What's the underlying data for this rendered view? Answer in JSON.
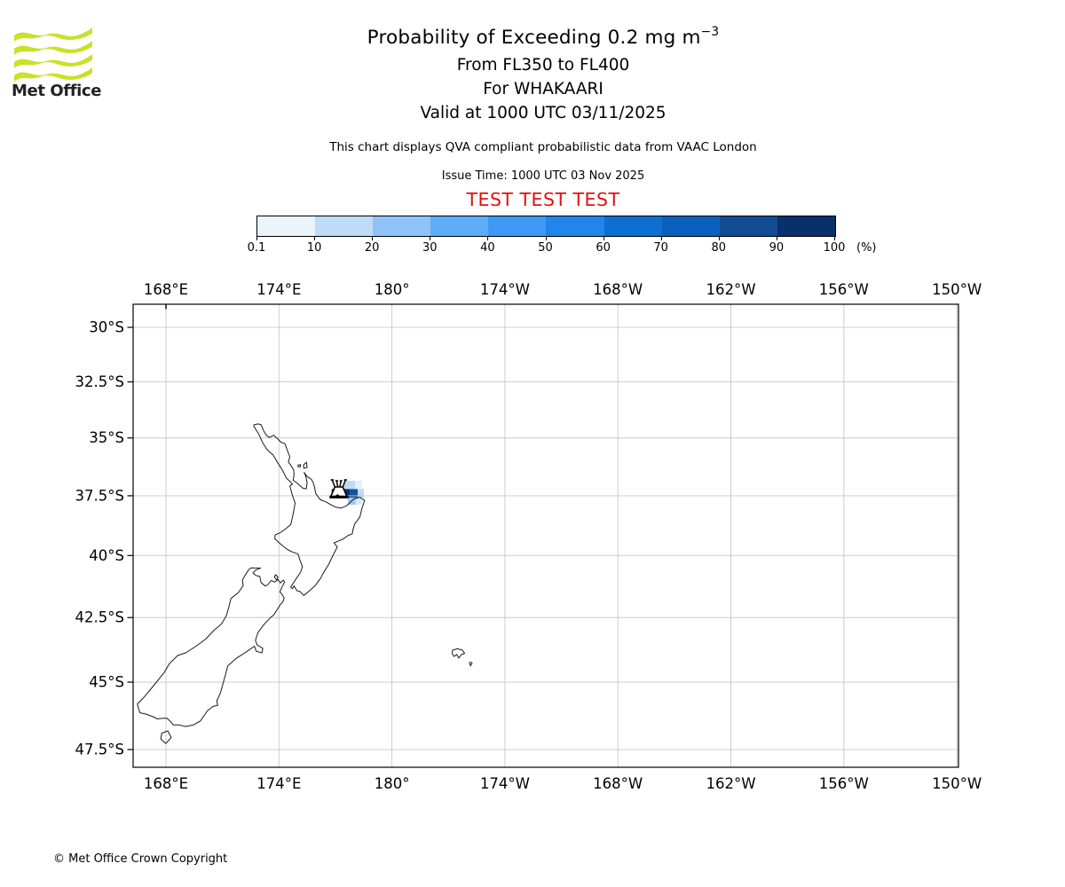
{
  "header": {
    "brand": "Met Office",
    "title": "Probability of Exceeding 0.2 mg m",
    "title_sup": "−3",
    "line2": "From FL350 to FL400",
    "line3": "For WHAKAARI",
    "line4": "Valid at 1000 UTC 03/11/2025",
    "note": "This chart displays QVA compliant probabilistic data from VAAC London",
    "issue": "Issue Time: 1000 UTC 03 Nov 2025",
    "banner": "TEST TEST TEST"
  },
  "colors": {
    "banner_red": "#E01111",
    "logo_green": "#C9E126",
    "grid_gray": "#C8C8C8",
    "coast_black": "#1a1a1a"
  },
  "colorbar": {
    "unit": "(%)",
    "tick_labels": [
      "0.1",
      "10",
      "20",
      "30",
      "40",
      "50",
      "60",
      "70",
      "80",
      "90",
      "100"
    ],
    "segment_colors": [
      "#EBF3FB",
      "#BFDCF6",
      "#8FC3F7",
      "#5EACF8",
      "#3E9AF4",
      "#2185EB",
      "#0D6FD2",
      "#0A60BC",
      "#114C92",
      "#08306B"
    ]
  },
  "chart_data": {
    "type": "heatmap",
    "title": "Probability of Exceeding 0.2 mg m−3",
    "subtitle": "From FL350 to FL400, For WHAKAARI, Valid at 1000 UTC 03/11/2025",
    "legend_title": "(%)",
    "colorbar_bounds": [
      0.1,
      10,
      20,
      30,
      40,
      50,
      60,
      70,
      80,
      90,
      100
    ],
    "x_axis": {
      "ticks": [
        168,
        174,
        180,
        186,
        192,
        198,
        204,
        210
      ],
      "labels": [
        "168°E",
        "174°E",
        "180°",
        "174°W",
        "168°W",
        "162°W",
        "156°W",
        "150°W"
      ]
    },
    "y_axis": {
      "ticks": [
        -30,
        -32.5,
        -35,
        -37.5,
        -40,
        -42.5,
        -45,
        -47.5
      ],
      "labels": [
        "30°S",
        "32.5°S",
        "35°S",
        "37.5°S",
        "40°S",
        "42.5°S",
        "45°S",
        "47.5°S"
      ]
    },
    "volcano": {
      "name": "WHAKAARI",
      "lon": 177.18,
      "lat": -37.52
    },
    "cells": [
      {
        "lon": [
          176.8,
          177.28
        ],
        "lat": [
          -37.21,
          -37.58
        ],
        "prob": "90–100",
        "color": "#08306B"
      },
      {
        "lon": [
          177.28,
          177.76
        ],
        "lat": [
          -37.21,
          -37.58
        ],
        "prob": "90–100",
        "color": "#08306B"
      },
      {
        "lon": [
          177.76,
          178.18
        ],
        "lat": [
          -37.21,
          -37.58
        ],
        "prob": "80–90",
        "color": "#11529B"
      },
      {
        "lon": [
          178.18,
          178.51
        ],
        "lat": [
          -37.21,
          -37.58
        ],
        "prob": "10–20",
        "color": "#BEDCF6"
      },
      {
        "lon": [
          177.47,
          178.04
        ],
        "lat": [
          -36.86,
          -37.21
        ],
        "prob": "10–20",
        "color": "#BEDCF6"
      },
      {
        "lon": [
          178.04,
          178.41
        ],
        "lat": [
          -36.86,
          -37.21
        ],
        "prob": "0.1–10",
        "color": "#E4EFFA"
      },
      {
        "lon": [
          177.66,
          178.08
        ],
        "lat": [
          -37.58,
          -37.88
        ],
        "prob": "20–30",
        "color": "#9CC9F2"
      },
      {
        "lon": [
          178.08,
          178.41
        ],
        "lat": [
          -37.58,
          -37.88
        ],
        "prob": "0.1–10",
        "color": "#D9E9F9"
      }
    ],
    "coastlines": {
      "north_island": [
        [
          172.68,
          -34.42
        ],
        [
          172.88,
          -34.38
        ],
        [
          173.05,
          -34.41
        ],
        [
          173.2,
          -34.7
        ],
        [
          173.35,
          -34.9
        ],
        [
          173.5,
          -34.98
        ],
        [
          173.72,
          -34.88
        ],
        [
          173.95,
          -35.05
        ],
        [
          174.1,
          -35.18
        ],
        [
          174.32,
          -35.25
        ],
        [
          174.45,
          -35.55
        ],
        [
          174.58,
          -35.82
        ],
        [
          174.5,
          -36.05
        ],
        [
          174.62,
          -36.18
        ],
        [
          174.78,
          -36.4
        ],
        [
          174.8,
          -36.6
        ],
        [
          174.76,
          -36.84
        ],
        [
          174.9,
          -36.92
        ],
        [
          175.05,
          -37.02
        ],
        [
          175.28,
          -37.18
        ],
        [
          175.45,
          -37.2
        ],
        [
          175.5,
          -36.95
        ],
        [
          175.42,
          -36.65
        ],
        [
          175.34,
          -36.5
        ],
        [
          175.5,
          -36.68
        ],
        [
          175.7,
          -36.78
        ],
        [
          175.8,
          -36.9
        ],
        [
          175.88,
          -37.1
        ],
        [
          175.95,
          -37.4
        ],
        [
          176.2,
          -37.67
        ],
        [
          176.5,
          -37.76
        ],
        [
          176.8,
          -37.9
        ],
        [
          177.0,
          -37.98
        ],
        [
          177.3,
          -38.02
        ],
        [
          177.6,
          -37.92
        ],
        [
          177.95,
          -37.65
        ],
        [
          178.3,
          -37.56
        ],
        [
          178.55,
          -37.7
        ],
        [
          178.4,
          -38.05
        ],
        [
          178.3,
          -38.4
        ],
        [
          178.03,
          -38.68
        ],
        [
          177.92,
          -38.95
        ],
        [
          177.9,
          -39.1
        ],
        [
          177.65,
          -39.18
        ],
        [
          177.4,
          -39.32
        ],
        [
          176.92,
          -39.48
        ],
        [
          177.1,
          -39.65
        ],
        [
          176.9,
          -39.95
        ],
        [
          176.65,
          -40.35
        ],
        [
          176.35,
          -40.72
        ],
        [
          176.22,
          -40.92
        ],
        [
          175.95,
          -41.2
        ],
        [
          175.6,
          -41.45
        ],
        [
          175.32,
          -41.62
        ],
        [
          175.1,
          -41.45
        ],
        [
          174.95,
          -41.43
        ],
        [
          174.88,
          -41.33
        ],
        [
          174.8,
          -41.23
        ],
        [
          174.72,
          -41.35
        ],
        [
          174.62,
          -41.28
        ],
        [
          174.78,
          -41.1
        ],
        [
          174.95,
          -40.9
        ],
        [
          175.15,
          -40.68
        ],
        [
          175.25,
          -40.45
        ],
        [
          175.1,
          -40.15
        ],
        [
          175.02,
          -39.94
        ],
        [
          174.7,
          -39.85
        ],
        [
          174.45,
          -39.75
        ],
        [
          174.12,
          -39.55
        ],
        [
          173.78,
          -39.3
        ],
        [
          173.8,
          -39.15
        ],
        [
          174.08,
          -39.05
        ],
        [
          174.35,
          -38.9
        ],
        [
          174.62,
          -38.72
        ],
        [
          174.72,
          -38.4
        ],
        [
          174.8,
          -38.08
        ],
        [
          174.86,
          -37.8
        ],
        [
          174.7,
          -37.45
        ],
        [
          174.58,
          -37.08
        ],
        [
          174.72,
          -37.0
        ],
        [
          174.6,
          -36.9
        ],
        [
          174.4,
          -36.75
        ],
        [
          174.28,
          -36.55
        ],
        [
          174.2,
          -36.42
        ],
        [
          173.95,
          -36.1
        ],
        [
          173.7,
          -35.75
        ],
        [
          173.4,
          -35.54
        ],
        [
          173.28,
          -35.4
        ],
        [
          173.12,
          -35.18
        ],
        [
          172.92,
          -34.82
        ],
        [
          172.66,
          -34.48
        ],
        [
          172.68,
          -34.42
        ]
      ],
      "south_island": [
        [
          173.02,
          -40.51
        ],
        [
          172.72,
          -40.51
        ],
        [
          172.54,
          -40.5
        ],
        [
          172.4,
          -40.57
        ],
        [
          172.24,
          -40.76
        ],
        [
          172.06,
          -41.0
        ],
        [
          172.1,
          -41.22
        ],
        [
          171.85,
          -41.5
        ],
        [
          171.45,
          -41.74
        ],
        [
          171.34,
          -42.08
        ],
        [
          171.2,
          -42.44
        ],
        [
          170.95,
          -42.75
        ],
        [
          170.55,
          -43.0
        ],
        [
          170.1,
          -43.35
        ],
        [
          169.6,
          -43.62
        ],
        [
          169.05,
          -43.88
        ],
        [
          168.62,
          -43.98
        ],
        [
          168.18,
          -44.3
        ],
        [
          167.92,
          -44.62
        ],
        [
          167.55,
          -44.95
        ],
        [
          167.15,
          -45.3
        ],
        [
          166.8,
          -45.6
        ],
        [
          166.48,
          -45.82
        ],
        [
          166.55,
          -46.0
        ],
        [
          166.62,
          -46.15
        ],
        [
          166.95,
          -46.2
        ],
        [
          167.25,
          -46.28
        ],
        [
          167.55,
          -46.38
        ],
        [
          167.8,
          -46.36
        ],
        [
          168.05,
          -46.35
        ],
        [
          168.3,
          -46.52
        ],
        [
          168.38,
          -46.6
        ],
        [
          168.7,
          -46.6
        ],
        [
          169.05,
          -46.66
        ],
        [
          169.45,
          -46.6
        ],
        [
          169.82,
          -46.46
        ],
        [
          170.2,
          -46.08
        ],
        [
          170.48,
          -45.92
        ],
        [
          170.75,
          -45.87
        ],
        [
          170.7,
          -45.7
        ],
        [
          170.9,
          -45.4
        ],
        [
          171.02,
          -45.08
        ],
        [
          171.15,
          -44.75
        ],
        [
          171.28,
          -44.38
        ],
        [
          171.75,
          -44.08
        ],
        [
          172.25,
          -43.85
        ],
        [
          172.7,
          -43.62
        ],
        [
          172.8,
          -43.82
        ],
        [
          173.1,
          -43.88
        ],
        [
          173.14,
          -43.7
        ],
        [
          172.85,
          -43.58
        ],
        [
          172.75,
          -43.4
        ],
        [
          172.88,
          -43.1
        ],
        [
          173.2,
          -42.78
        ],
        [
          173.58,
          -42.48
        ],
        [
          173.72,
          -42.4
        ],
        [
          174.08,
          -41.98
        ],
        [
          174.22,
          -41.85
        ],
        [
          174.28,
          -41.72
        ],
        [
          174.14,
          -41.55
        ],
        [
          174.05,
          -41.48
        ],
        [
          174.15,
          -41.3
        ],
        [
          174.3,
          -41.08
        ],
        [
          174.22,
          -41.0
        ],
        [
          174.08,
          -41.12
        ],
        [
          173.95,
          -40.98
        ],
        [
          173.78,
          -41.08
        ],
        [
          173.58,
          -41.02
        ],
        [
          173.42,
          -41.18
        ],
        [
          173.28,
          -41.24
        ],
        [
          173.05,
          -41.1
        ],
        [
          172.98,
          -40.85
        ],
        [
          172.8,
          -40.82
        ],
        [
          172.62,
          -40.72
        ],
        [
          172.75,
          -40.6
        ],
        [
          173.02,
          -40.51
        ]
      ],
      "stewart_island": [
        [
          167.78,
          -46.9
        ],
        [
          168.1,
          -46.82
        ],
        [
          168.28,
          -47.06
        ],
        [
          168.0,
          -47.28
        ],
        [
          167.72,
          -47.12
        ],
        [
          167.78,
          -46.9
        ]
      ],
      "durville_island": [
        [
          173.82,
          -40.78
        ],
        [
          173.95,
          -40.88
        ],
        [
          173.88,
          -41.0
        ],
        [
          173.76,
          -40.88
        ],
        [
          173.82,
          -40.78
        ]
      ],
      "great_barrier_island": [
        [
          175.32,
          -36.32
        ],
        [
          175.5,
          -36.28
        ],
        [
          175.46,
          -36.06
        ],
        [
          175.3,
          -36.18
        ],
        [
          175.32,
          -36.32
        ]
      ],
      "little_barrier_island": [
        [
          175.02,
          -36.18
        ],
        [
          175.14,
          -36.16
        ],
        [
          175.14,
          -36.26
        ],
        [
          175.02,
          -36.26
        ],
        [
          175.02,
          -36.18
        ]
      ],
      "chatham_island": [
        [
          183.22,
          -43.78
        ],
        [
          183.48,
          -43.72
        ],
        [
          183.75,
          -43.78
        ],
        [
          183.86,
          -43.9
        ],
        [
          183.68,
          -43.95
        ],
        [
          183.55,
          -44.08
        ],
        [
          183.44,
          -43.94
        ],
        [
          183.3,
          -44.02
        ],
        [
          183.2,
          -43.9
        ],
        [
          183.22,
          -43.78
        ]
      ],
      "pitt_island": [
        [
          184.14,
          -44.24
        ],
        [
          184.26,
          -44.26
        ],
        [
          184.18,
          -44.38
        ],
        [
          184.12,
          -44.3
        ],
        [
          184.14,
          -44.24
        ]
      ]
    }
  },
  "footer": {
    "copyright": "© Met Office Crown Copyright"
  }
}
